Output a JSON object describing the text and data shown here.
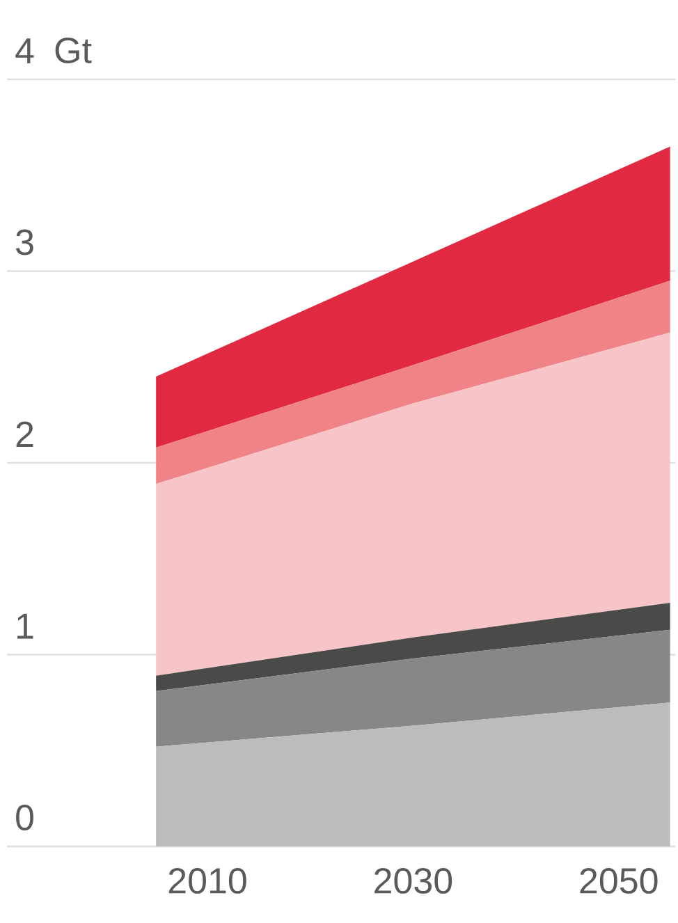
{
  "chart_data": {
    "type": "area",
    "stacked": true,
    "ylabel": "Gt",
    "x": [
      2005,
      2030,
      2055
    ],
    "xlim": [
      1990.5,
      2055.5
    ],
    "xticks": [
      2010,
      2030,
      2050
    ],
    "ylim": [
      0,
      4
    ],
    "yticks": [
      0,
      1,
      2,
      3,
      4
    ],
    "grid": "y",
    "series": [
      {
        "color": "#bcbcbc",
        "values": [
          0.52,
          0.63,
          0.75
        ]
      },
      {
        "color": "#878787",
        "values": [
          0.29,
          0.35,
          0.38
        ]
      },
      {
        "color": "#4a4a48",
        "values": [
          0.08,
          0.11,
          0.14
        ]
      },
      {
        "color": "#f7c5c7",
        "values": [
          1.0,
          1.22,
          1.41
        ]
      },
      {
        "color": "#f08387",
        "values": [
          0.19,
          0.2,
          0.27
        ]
      },
      {
        "color": "#e12a42",
        "values": [
          0.37,
          0.54,
          0.7
        ]
      }
    ]
  }
}
